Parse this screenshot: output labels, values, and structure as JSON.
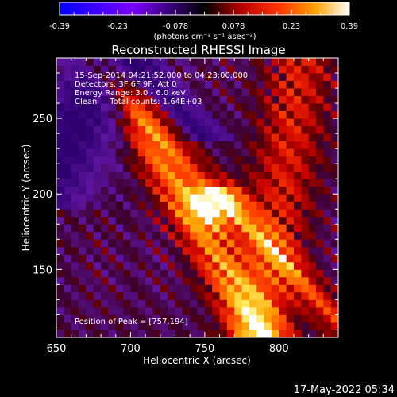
{
  "colorbar": {
    "ticks": [
      "-0.39",
      "-0.23",
      "-0.078",
      "0.078",
      "0.23",
      "0.39"
    ],
    "unit_label": "(photons cm⁻² s⁻¹ asec⁻²)",
    "min": -0.39,
    "max": 0.39
  },
  "chart_data": {
    "type": "heatmap",
    "title": "Reconstructed RHESSI Image",
    "xlabel": "Heliocentric X (arcsec)",
    "ylabel": "Heliocentric Y (arcsec)",
    "xlim": [
      650,
      840
    ],
    "ylim": [
      105,
      290
    ],
    "x_ticks": [
      650,
      700,
      750,
      800
    ],
    "y_ticks": [
      150,
      200,
      250
    ],
    "colormap": "rhessi-blue-red-yellow",
    "value_range": [
      -0.39,
      0.39
    ],
    "peak_position": [
      757,
      194
    ],
    "peak_value": 0.39,
    "annotations": [
      "15-Sep-2014 04:21:52.000 to 04:23:00.000",
      "Detectors: 3F 6F 9F, Att 0",
      "Energy Range: 3.0 - 6.0 keV",
      "Clean     Total counts: 1.64E+03"
    ],
    "peak_label": "Position of Peak = [757,194]"
  },
  "timestamp": "17-May-2022 05:34"
}
